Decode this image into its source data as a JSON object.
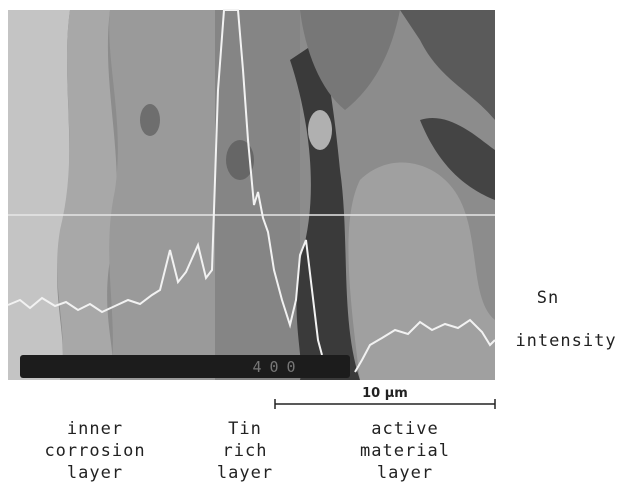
{
  "image_label": "400",
  "element": "Sn",
  "signal": "intensity",
  "scale_bar": "10 μm",
  "regions": [
    {
      "lines": [
        "inner",
        "corrosion",
        "layer"
      ]
    },
    {
      "lines": [
        "Tin",
        "rich",
        "layer"
      ]
    },
    {
      "lines": [
        "active",
        "material",
        "layer"
      ]
    }
  ]
}
